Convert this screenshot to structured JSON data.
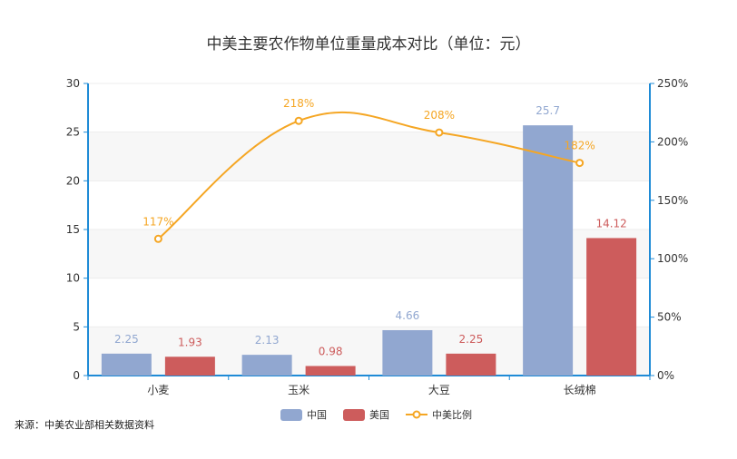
{
  "chart_data": {
    "type": "bar",
    "title": "中美主要农作物单位重量成本对比（单位：元）",
    "categories": [
      "小麦",
      "玉米",
      "大豆",
      "长绒棉"
    ],
    "series": [
      {
        "name": "中国",
        "type": "bar",
        "axis": "left",
        "values": [
          2.25,
          2.13,
          4.66,
          25.7
        ],
        "labels": [
          "2.25",
          "2.13",
          "4.66",
          "25.7"
        ],
        "color": "#91a7d0"
      },
      {
        "name": "美国",
        "type": "bar",
        "axis": "left",
        "values": [
          1.93,
          0.98,
          2.25,
          14.12
        ],
        "labels": [
          "1.93",
          "0.98",
          "2.25",
          "14.12"
        ],
        "color": "#cd5c5c"
      },
      {
        "name": "中美比例",
        "type": "line",
        "axis": "right",
        "values": [
          117,
          218,
          208,
          182
        ],
        "labels": [
          "117%",
          "218%",
          "208%",
          "182%"
        ],
        "color": "#f5a623"
      }
    ],
    "y_left": {
      "min": 0,
      "max": 30,
      "ticks": [
        "0",
        "5",
        "10",
        "15",
        "20",
        "25",
        "30"
      ]
    },
    "y_right": {
      "min": 0,
      "max": 250,
      "ticks": [
        "0%",
        "50%",
        "100%",
        "150%",
        "200%",
        "250%"
      ]
    },
    "legend_position": "bottom-center",
    "axis_color": "#1f8bd6"
  },
  "source": "来源：中美农业部相关数据资料"
}
